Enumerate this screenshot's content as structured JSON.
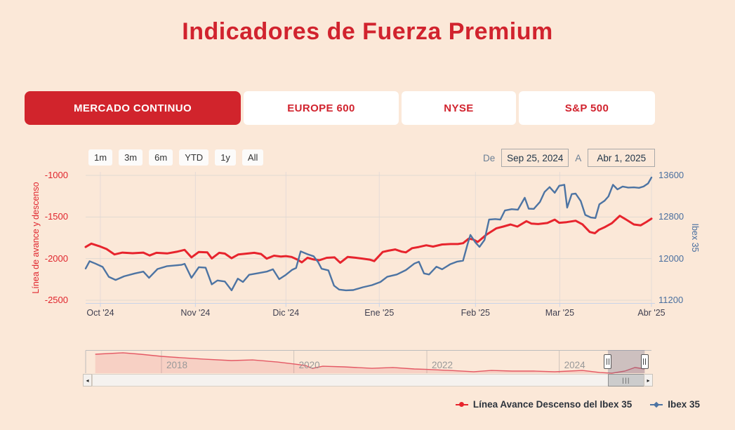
{
  "page": {
    "title": "Indicadores de Fuerza Premium",
    "background": "#fbe8d8"
  },
  "tabs": [
    {
      "label": "MERCADO CONTINUO",
      "active": true
    },
    {
      "label": "EUROPE 600",
      "active": false
    },
    {
      "label": "NYSE",
      "active": false
    },
    {
      "label": "S&P 500",
      "active": false
    }
  ],
  "toolbar": {
    "range_buttons": [
      "1m",
      "3m",
      "6m",
      "YTD",
      "1y",
      "All"
    ],
    "from_label": "De",
    "from_value": "Sep 25, 2024",
    "to_label": "A",
    "to_value": "Abr 1, 2025"
  },
  "icons": {
    "scroll_left": "◂",
    "scroll_right": "▸",
    "scrollbar_grip": "|||"
  },
  "colors": {
    "accent_red": "#d1232e",
    "series_red": "#e7242d",
    "series_blue": "#4d74a3",
    "left_axis_text": "#e0242c",
    "right_axis_text": "#4a6f9f",
    "grid": "rgba(222,216,210,0.9)",
    "axis_line": "#c9d4e8"
  },
  "chart_data": {
    "type": "line",
    "title": "",
    "x_ticks": [
      {
        "label": "Oct '24",
        "t": 0.026
      },
      {
        "label": "Nov '24",
        "t": 0.194
      },
      {
        "label": "Dic '24",
        "t": 0.354
      },
      {
        "label": "Ene '25",
        "t": 0.519
      },
      {
        "label": "Feb '25",
        "t": 0.689
      },
      {
        "label": "Mar '25",
        "t": 0.838
      },
      {
        "label": "Abr '25",
        "t": 1.0
      }
    ],
    "left_axis": {
      "title": "Línea de avance y descenso",
      "min": -2500,
      "max": -1000,
      "ticks": [
        -1000,
        -1500,
        -2000,
        -2500
      ]
    },
    "right_axis": {
      "title": "Ibex 35",
      "min": 11200,
      "max": 13600,
      "ticks": [
        13600,
        12800,
        12000,
        11200
      ]
    },
    "series": [
      {
        "name": "Línea Avance Descenso del Ibex 35",
        "axis": "left",
        "color": "#e7242d",
        "marker": "circle",
        "width": 3,
        "points": [
          [
            0,
            -1860
          ],
          [
            0.01,
            -1820
          ],
          [
            0.024,
            -1850
          ],
          [
            0.037,
            -1885
          ],
          [
            0.051,
            -1950
          ],
          [
            0.065,
            -1928
          ],
          [
            0.083,
            -1935
          ],
          [
            0.102,
            -1928
          ],
          [
            0.113,
            -1962
          ],
          [
            0.125,
            -1930
          ],
          [
            0.144,
            -1938
          ],
          [
            0.161,
            -1918
          ],
          [
            0.175,
            -1895
          ],
          [
            0.187,
            -1985
          ],
          [
            0.2,
            -1920
          ],
          [
            0.215,
            -1925
          ],
          [
            0.223,
            -1998
          ],
          [
            0.236,
            -1930
          ],
          [
            0.246,
            -1940
          ],
          [
            0.258,
            -1995
          ],
          [
            0.27,
            -1950
          ],
          [
            0.285,
            -1940
          ],
          [
            0.298,
            -1930
          ],
          [
            0.31,
            -1945
          ],
          [
            0.32,
            -2000
          ],
          [
            0.333,
            -1965
          ],
          [
            0.345,
            -1975
          ],
          [
            0.354,
            -1970
          ],
          [
            0.364,
            -1980
          ],
          [
            0.375,
            -2015
          ],
          [
            0.382,
            -2045
          ],
          [
            0.392,
            -1990
          ],
          [
            0.403,
            -2010
          ],
          [
            0.413,
            -2020
          ],
          [
            0.426,
            -1990
          ],
          [
            0.44,
            -1985
          ],
          [
            0.45,
            -2050
          ],
          [
            0.463,
            -1980
          ],
          [
            0.478,
            -1990
          ],
          [
            0.49,
            -2000
          ],
          [
            0.502,
            -2012
          ],
          [
            0.51,
            -2030
          ],
          [
            0.525,
            -1920
          ],
          [
            0.535,
            -1905
          ],
          [
            0.547,
            -1890
          ],
          [
            0.558,
            -1915
          ],
          [
            0.566,
            -1925
          ],
          [
            0.577,
            -1875
          ],
          [
            0.589,
            -1860
          ],
          [
            0.602,
            -1840
          ],
          [
            0.614,
            -1855
          ],
          [
            0.63,
            -1830
          ],
          [
            0.645,
            -1825
          ],
          [
            0.658,
            -1825
          ],
          [
            0.667,
            -1815
          ],
          [
            0.677,
            -1760
          ],
          [
            0.685,
            -1770
          ],
          [
            0.693,
            -1800
          ],
          [
            0.708,
            -1715
          ],
          [
            0.726,
            -1635
          ],
          [
            0.738,
            -1615
          ],
          [
            0.751,
            -1590
          ],
          [
            0.763,
            -1615
          ],
          [
            0.779,
            -1550
          ],
          [
            0.788,
            -1580
          ],
          [
            0.8,
            -1585
          ],
          [
            0.816,
            -1572
          ],
          [
            0.829,
            -1532
          ],
          [
            0.837,
            -1570
          ],
          [
            0.85,
            -1562
          ],
          [
            0.866,
            -1545
          ],
          [
            0.878,
            -1588
          ],
          [
            0.891,
            -1680
          ],
          [
            0.9,
            -1695
          ],
          [
            0.907,
            -1655
          ],
          [
            0.918,
            -1620
          ],
          [
            0.93,
            -1575
          ],
          [
            0.944,
            -1485
          ],
          [
            0.955,
            -1530
          ],
          [
            0.969,
            -1590
          ],
          [
            0.981,
            -1600
          ],
          [
            0.991,
            -1560
          ],
          [
            1,
            -1520
          ]
        ]
      },
      {
        "name": "Ibex 35",
        "axis": "right",
        "color": "#4d74a3",
        "marker": "diamond",
        "width": 2.4,
        "points": [
          [
            0,
            11810
          ],
          [
            0.007,
            11950
          ],
          [
            0.017,
            11905
          ],
          [
            0.03,
            11840
          ],
          [
            0.041,
            11650
          ],
          [
            0.053,
            11590
          ],
          [
            0.068,
            11660
          ],
          [
            0.087,
            11715
          ],
          [
            0.102,
            11750
          ],
          [
            0.112,
            11630
          ],
          [
            0.127,
            11800
          ],
          [
            0.144,
            11855
          ],
          [
            0.159,
            11870
          ],
          [
            0.169,
            11880
          ],
          [
            0.175,
            11900
          ],
          [
            0.187,
            11630
          ],
          [
            0.2,
            11835
          ],
          [
            0.212,
            11825
          ],
          [
            0.223,
            11505
          ],
          [
            0.233,
            11580
          ],
          [
            0.246,
            11560
          ],
          [
            0.258,
            11390
          ],
          [
            0.269,
            11615
          ],
          [
            0.278,
            11550
          ],
          [
            0.289,
            11690
          ],
          [
            0.305,
            11720
          ],
          [
            0.32,
            11750
          ],
          [
            0.331,
            11795
          ],
          [
            0.342,
            11605
          ],
          [
            0.354,
            11690
          ],
          [
            0.365,
            11785
          ],
          [
            0.372,
            11820
          ],
          [
            0.38,
            12140
          ],
          [
            0.392,
            12085
          ],
          [
            0.403,
            12045
          ],
          [
            0.411,
            11930
          ],
          [
            0.417,
            11805
          ],
          [
            0.429,
            11775
          ],
          [
            0.439,
            11480
          ],
          [
            0.448,
            11405
          ],
          [
            0.46,
            11390
          ],
          [
            0.473,
            11395
          ],
          [
            0.49,
            11450
          ],
          [
            0.506,
            11490
          ],
          [
            0.521,
            11550
          ],
          [
            0.533,
            11650
          ],
          [
            0.55,
            11695
          ],
          [
            0.566,
            11780
          ],
          [
            0.581,
            11905
          ],
          [
            0.589,
            11940
          ],
          [
            0.598,
            11715
          ],
          [
            0.607,
            11695
          ],
          [
            0.62,
            11845
          ],
          [
            0.63,
            11795
          ],
          [
            0.644,
            11890
          ],
          [
            0.656,
            11940
          ],
          [
            0.667,
            11960
          ],
          [
            0.675,
            12280
          ],
          [
            0.68,
            12455
          ],
          [
            0.689,
            12310
          ],
          [
            0.696,
            12225
          ],
          [
            0.705,
            12360
          ],
          [
            0.713,
            12750
          ],
          [
            0.724,
            12760
          ],
          [
            0.733,
            12750
          ],
          [
            0.741,
            12925
          ],
          [
            0.753,
            12950
          ],
          [
            0.764,
            12940
          ],
          [
            0.776,
            13170
          ],
          [
            0.783,
            12960
          ],
          [
            0.792,
            12955
          ],
          [
            0.803,
            13090
          ],
          [
            0.811,
            13280
          ],
          [
            0.82,
            13375
          ],
          [
            0.829,
            13265
          ],
          [
            0.837,
            13400
          ],
          [
            0.846,
            13420
          ],
          [
            0.851,
            12980
          ],
          [
            0.859,
            13240
          ],
          [
            0.866,
            13250
          ],
          [
            0.875,
            13105
          ],
          [
            0.883,
            12840
          ],
          [
            0.893,
            12790
          ],
          [
            0.901,
            12780
          ],
          [
            0.908,
            13045
          ],
          [
            0.917,
            13110
          ],
          [
            0.924,
            13195
          ],
          [
            0.932,
            13420
          ],
          [
            0.94,
            13330
          ],
          [
            0.949,
            13385
          ],
          [
            0.959,
            13365
          ],
          [
            0.969,
            13370
          ],
          [
            0.978,
            13360
          ],
          [
            0.986,
            13385
          ],
          [
            0.994,
            13445
          ],
          [
            1,
            13560
          ]
        ]
      }
    ],
    "navigator": {
      "year_ticks": [
        {
          "label": "2018",
          "t": 0.134
        },
        {
          "label": "2020",
          "t": 0.368
        },
        {
          "label": "2022",
          "t": 0.603
        },
        {
          "label": "2024",
          "t": 0.837
        }
      ],
      "line_color": "#e45864",
      "area_color": "rgba(231,84,94,0.16)",
      "mask_color": "rgba(108,108,140,0.32)",
      "selection": {
        "from_t": 0.923,
        "to_t": 0.988
      },
      "points": [
        [
          0.017,
          0.9
        ],
        [
          0.066,
          0.97
        ],
        [
          0.097,
          0.9
        ],
        [
          0.134,
          0.8
        ],
        [
          0.171,
          0.73
        ],
        [
          0.208,
          0.67
        ],
        [
          0.258,
          0.6
        ],
        [
          0.295,
          0.63
        ],
        [
          0.339,
          0.53
        ],
        [
          0.37,
          0.43
        ],
        [
          0.388,
          0.37
        ],
        [
          0.401,
          0.23
        ],
        [
          0.419,
          0.33
        ],
        [
          0.457,
          0.3
        ],
        [
          0.506,
          0.23
        ],
        [
          0.543,
          0.27
        ],
        [
          0.581,
          0.2
        ],
        [
          0.603,
          0.18
        ],
        [
          0.643,
          0.13
        ],
        [
          0.686,
          0.07
        ],
        [
          0.717,
          0.13
        ],
        [
          0.754,
          0.1
        ],
        [
          0.792,
          0.1
        ],
        [
          0.829,
          0.07
        ],
        [
          0.854,
          0.1
        ],
        [
          0.878,
          0.13
        ],
        [
          0.909,
          0.03
        ],
        [
          0.93,
          0.0
        ],
        [
          0.953,
          0.1
        ],
        [
          0.971,
          0.27
        ],
        [
          0.988,
          0.2
        ]
      ]
    }
  }
}
